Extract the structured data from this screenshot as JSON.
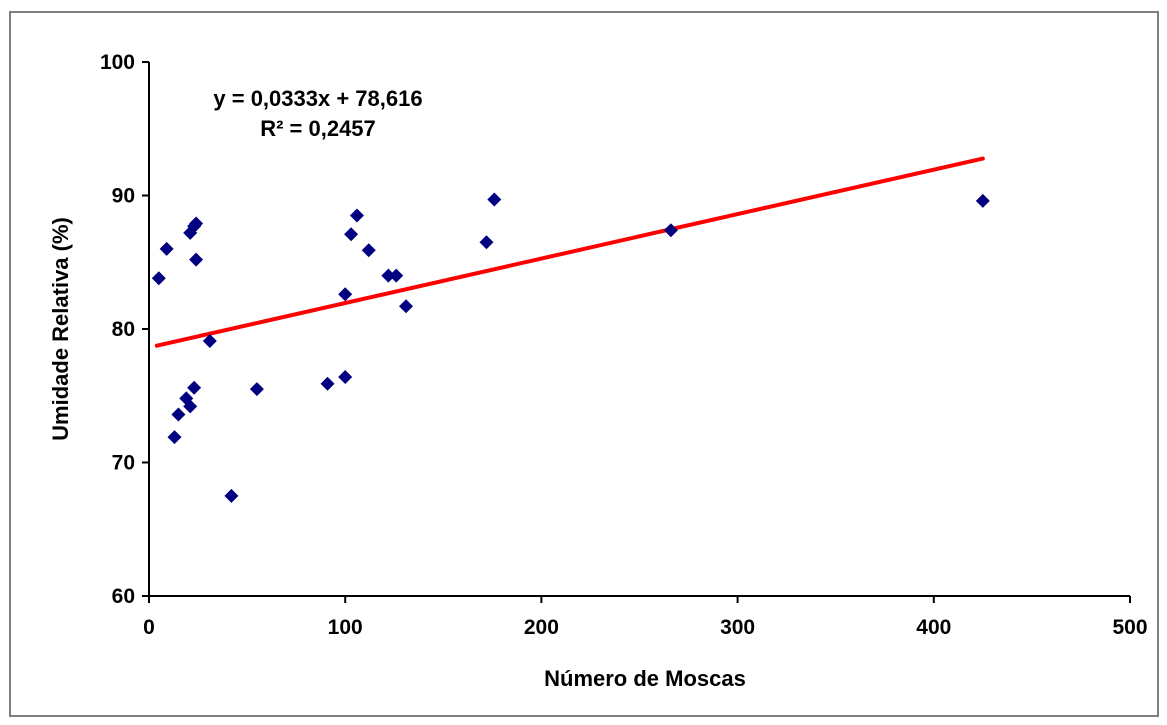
{
  "chart_data": {
    "type": "scatter",
    "xlabel": "Número de Moscas",
    "ylabel": "Umidade Relativa (%)",
    "xlim": [
      0,
      500
    ],
    "ylim": [
      60,
      100
    ],
    "x_ticks": [
      "0",
      "100",
      "200",
      "300",
      "400",
      "500"
    ],
    "y_ticks": [
      "60",
      "70",
      "80",
      "90",
      "100"
    ],
    "grid": false,
    "marker_color": "#000080",
    "trendline_color": "#ff0000",
    "equation": "y = 0,0333x + 78,616",
    "r_squared": "R² = 0,2457",
    "trendline": {
      "slope": 0.0333,
      "intercept": 78.616,
      "x_range": [
        4,
        425
      ]
    },
    "points": [
      {
        "x": 5,
        "y": 83.8
      },
      {
        "x": 9,
        "y": 86.0
      },
      {
        "x": 13,
        "y": 71.9
      },
      {
        "x": 15,
        "y": 73.6
      },
      {
        "x": 19,
        "y": 74.8
      },
      {
        "x": 21,
        "y": 74.2
      },
      {
        "x": 21,
        "y": 87.2
      },
      {
        "x": 23,
        "y": 75.6
      },
      {
        "x": 23,
        "y": 87.7
      },
      {
        "x": 24,
        "y": 87.9
      },
      {
        "x": 24,
        "y": 85.2
      },
      {
        "x": 31,
        "y": 79.1
      },
      {
        "x": 42,
        "y": 67.5
      },
      {
        "x": 55,
        "y": 75.5
      },
      {
        "x": 91,
        "y": 75.9
      },
      {
        "x": 100,
        "y": 76.4
      },
      {
        "x": 100,
        "y": 82.6
      },
      {
        "x": 103,
        "y": 87.1
      },
      {
        "x": 106,
        "y": 88.5
      },
      {
        "x": 112,
        "y": 85.9
      },
      {
        "x": 122,
        "y": 84.0
      },
      {
        "x": 126,
        "y": 84.0
      },
      {
        "x": 131,
        "y": 81.7
      },
      {
        "x": 172,
        "y": 86.5
      },
      {
        "x": 176,
        "y": 89.7
      },
      {
        "x": 266,
        "y": 87.4
      },
      {
        "x": 425,
        "y": 89.6
      }
    ]
  }
}
